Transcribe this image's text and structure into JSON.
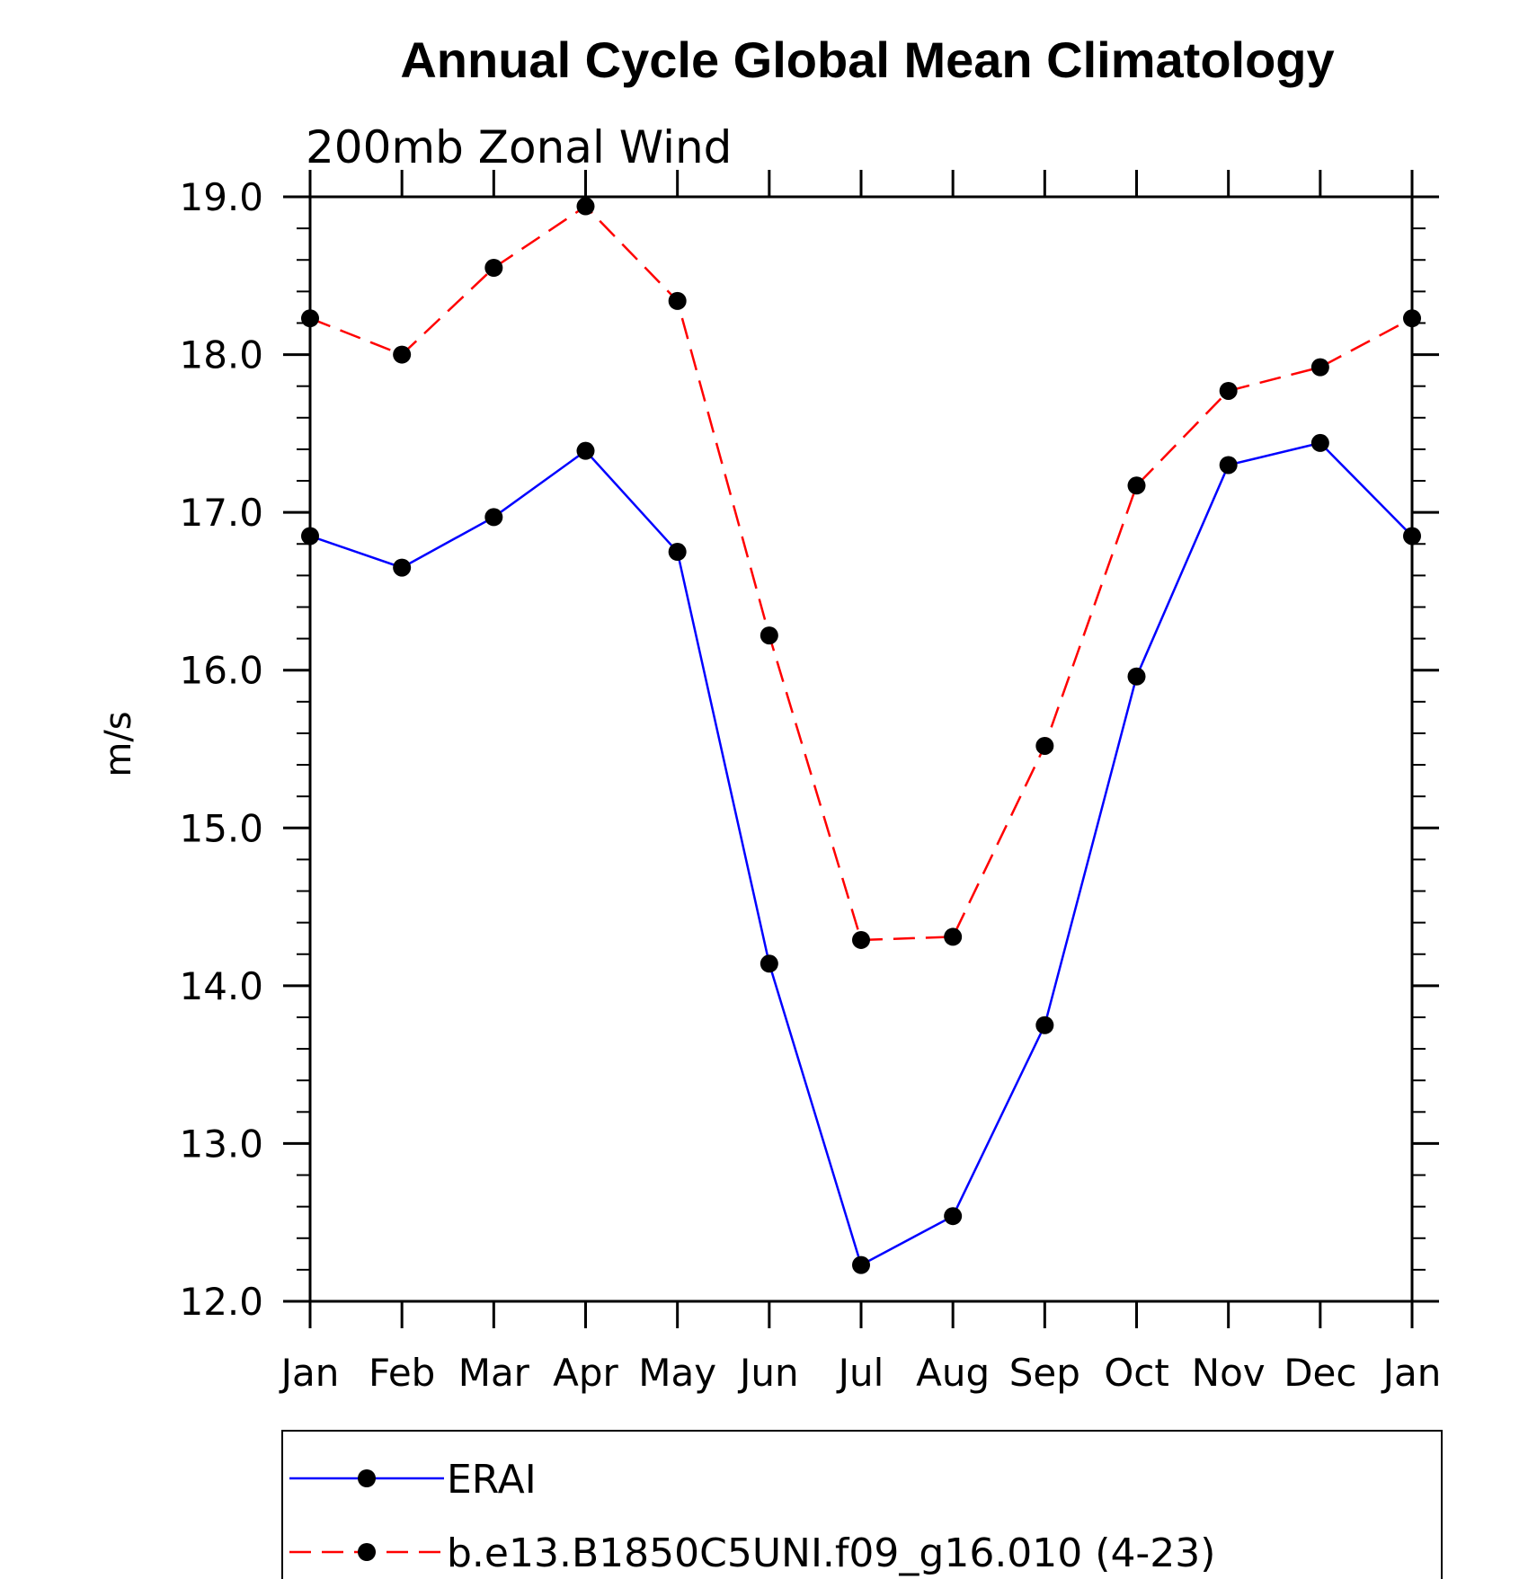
{
  "chart_data": {
    "type": "line",
    "title": "Annual Cycle Global Mean Climatology",
    "subtitle": "200mb Zonal Wind",
    "ylabel": "m/s",
    "xlabel": "",
    "ylim": [
      12.0,
      19.0
    ],
    "yticks": [
      "12.0",
      "13.0",
      "14.0",
      "15.0",
      "16.0",
      "17.0",
      "18.0",
      "19.0"
    ],
    "categories": [
      "Jan",
      "Feb",
      "Mar",
      "Apr",
      "May",
      "Jun",
      "Jul",
      "Aug",
      "Sep",
      "Oct",
      "Nov",
      "Dec",
      "Jan"
    ],
    "grid": false,
    "legend_position": "bottom",
    "series": [
      {
        "name": "ERAI",
        "color": "#0000ff",
        "dash": "solid",
        "marker": "dot",
        "values": [
          16.85,
          16.65,
          16.97,
          17.39,
          16.75,
          14.14,
          12.23,
          12.54,
          13.75,
          15.96,
          17.3,
          17.44,
          16.85
        ]
      },
      {
        "name": "b.e13.B1850C5UNI.f09_g16.010 (4-23)",
        "color": "#ff0000",
        "dash": "dashed",
        "marker": "dot",
        "values": [
          18.23,
          18.0,
          18.55,
          18.94,
          18.34,
          16.22,
          14.29,
          14.31,
          15.52,
          17.17,
          17.77,
          17.92,
          18.23
        ]
      }
    ]
  }
}
